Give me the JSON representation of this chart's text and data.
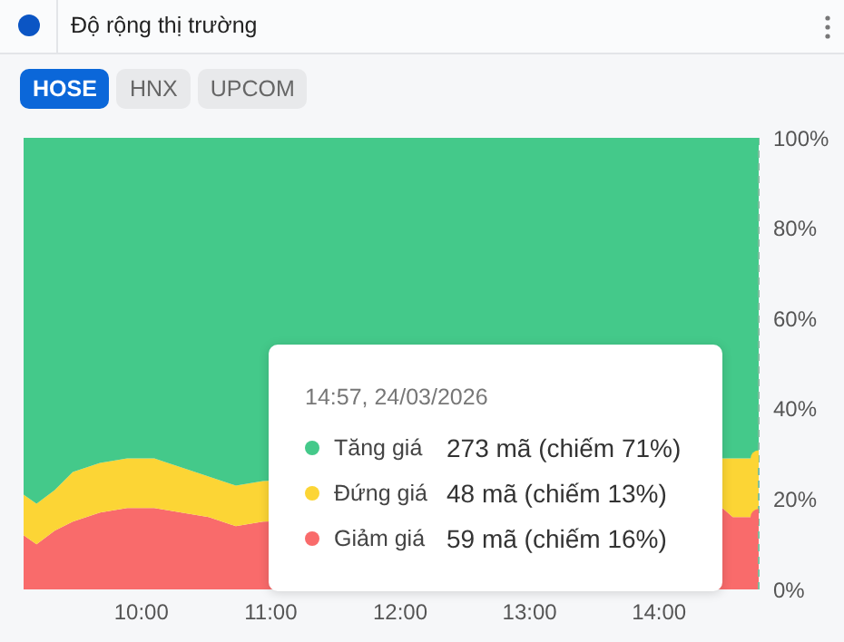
{
  "chart_data": {
    "type": "area",
    "title": "Độ rộng thị trường",
    "stacked": true,
    "x": [
      9.09,
      9.19,
      9.33,
      9.47,
      9.68,
      9.89,
      10.1,
      10.31,
      10.52,
      10.73,
      10.94,
      14.49,
      14.57,
      14.77
    ],
    "series": [
      {
        "name": "Giảm giá",
        "color": "#f96b6b",
        "values": [
          12,
          10,
          13,
          15,
          17,
          18,
          18,
          17,
          16,
          14,
          15,
          18,
          16,
          16
        ]
      },
      {
        "name": "Đứng giá",
        "color": "#fcd535",
        "values": [
          9,
          9,
          9,
          11,
          11,
          11,
          11,
          10,
          9,
          9,
          9,
          11,
          13,
          13
        ]
      },
      {
        "name": "Tăng giá",
        "color": "#44c98a",
        "values": [
          79,
          81,
          78,
          74,
          72,
          71,
          71,
          73,
          75,
          77,
          76,
          71,
          71,
          71
        ]
      }
    ],
    "xlim": [
      9.09,
      14.77
    ],
    "xticks": [
      {
        "value": 10,
        "label": "10:00"
      },
      {
        "value": 11,
        "label": "11:00"
      },
      {
        "value": 12,
        "label": "12:00"
      },
      {
        "value": 13,
        "label": "13:00"
      },
      {
        "value": 14,
        "label": "14:00"
      }
    ],
    "ylim": [
      0,
      100
    ],
    "yticks": [
      {
        "value": 0,
        "label": "0%"
      },
      {
        "value": 20,
        "label": "20%"
      },
      {
        "value": 40,
        "label": "40%"
      },
      {
        "value": 60,
        "label": "60%"
      },
      {
        "value": 80,
        "label": "80%"
      },
      {
        "value": 100,
        "label": "100%"
      }
    ],
    "ref_lines": [
      {
        "axis": "x",
        "value": 14.77,
        "color": "#7fbf9f",
        "line_style": "dashed"
      }
    ],
    "legend": "bottom right",
    "annotations": [
      "HOSE",
      "HNX",
      "UPCOM",
      "14:57, 24/03/2026",
      "59 mã (chiếm 16%)",
      "48 mã (chiếm 13%)",
      "273 mã (chiếm 71%)"
    ]
  }
}
